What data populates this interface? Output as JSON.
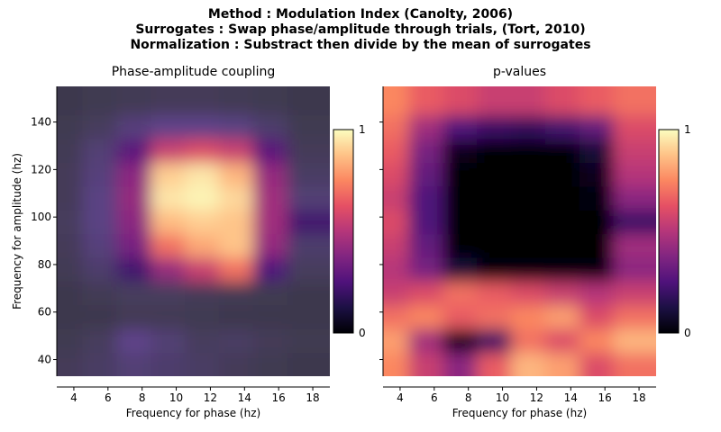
{
  "figure": {
    "title_lines": [
      "Method : Modulation Index (Canolty, 2006)",
      "Surrogates : Swap phase/amplitude through trials, (Tort, 2010)",
      "Normalization : Substract then divide by the mean of surrogates"
    ]
  },
  "colormap": {
    "name": "magma",
    "stops": [
      "#000004",
      "#1c1044",
      "#4f127b",
      "#812581",
      "#b5367a",
      "#e55064",
      "#fb8761",
      "#fec287",
      "#fcfdbf"
    ],
    "background_for_masked": "#3a3a3a"
  },
  "chart_data": [
    {
      "type": "heatmap",
      "title": "Phase-amplitude coupling",
      "xlabel": "Frequency for phase (hz)",
      "ylabel": "Frequency for amplitude (hz)",
      "xlim": [
        3,
        19
      ],
      "ylim": [
        33,
        155
      ],
      "xticks": [
        4,
        6,
        8,
        10,
        12,
        14,
        16,
        18
      ],
      "yticks": [
        40,
        60,
        80,
        100,
        120,
        140
      ],
      "colorbar": {
        "min": 0,
        "max": 1,
        "tick_labels": [
          "0",
          "1"
        ]
      },
      "x_bins": [
        3.5,
        5.5,
        7.5,
        9.5,
        11.5,
        13.5,
        15.5,
        17.5
      ],
      "y_bins": [
        38,
        48,
        58,
        68,
        78,
        88,
        98,
        108,
        118,
        128,
        138,
        148
      ],
      "values": [
        [
          0.05,
          0.08,
          0.12,
          0.1,
          0.08,
          0.05,
          0.03,
          0.02
        ],
        [
          0.03,
          0.06,
          0.18,
          0.12,
          0.06,
          0.08,
          0.05,
          0.03
        ],
        [
          0.02,
          0.02,
          0.04,
          0.04,
          0.03,
          0.02,
          0.02,
          0.02
        ],
        [
          0.02,
          0.04,
          0.06,
          0.06,
          0.05,
          0.04,
          0.03,
          0.02
        ],
        [
          0.04,
          0.1,
          0.22,
          0.42,
          0.55,
          0.7,
          0.25,
          0.06
        ],
        [
          0.05,
          0.14,
          0.35,
          0.7,
          0.82,
          0.88,
          0.42,
          0.1
        ],
        [
          0.06,
          0.16,
          0.4,
          0.86,
          0.9,
          0.88,
          0.45,
          0.22
        ],
        [
          0.05,
          0.16,
          0.42,
          0.95,
          0.98,
          0.92,
          0.45,
          0.12
        ],
        [
          0.05,
          0.14,
          0.4,
          0.9,
          0.95,
          0.85,
          0.42,
          0.08
        ],
        [
          0.04,
          0.12,
          0.28,
          0.55,
          0.6,
          0.55,
          0.28,
          0.05
        ],
        [
          0.03,
          0.06,
          0.14,
          0.18,
          0.18,
          0.16,
          0.1,
          0.03
        ],
        [
          0.02,
          0.03,
          0.04,
          0.05,
          0.05,
          0.04,
          0.03,
          0.02
        ]
      ]
    },
    {
      "type": "heatmap",
      "title": "p-values",
      "xlabel": "Frequency for phase (hz)",
      "ylabel": "",
      "xlim": [
        3,
        19
      ],
      "ylim": [
        33,
        155
      ],
      "xticks": [
        4,
        6,
        8,
        10,
        12,
        14,
        16,
        18
      ],
      "yticks": [
        40,
        60,
        80,
        100,
        120,
        140
      ],
      "colorbar": {
        "min": 0,
        "max": 1,
        "tick_labels": [
          "0",
          "1"
        ]
      },
      "x_bins": [
        3.5,
        5.5,
        7.5,
        9.5,
        11.5,
        13.5,
        15.5,
        17.5
      ],
      "y_bins": [
        38,
        48,
        58,
        68,
        78,
        88,
        98,
        108,
        118,
        128,
        138,
        148
      ],
      "values": [
        [
          0.75,
          0.55,
          0.4,
          0.65,
          0.85,
          0.8,
          0.6,
          0.7
        ],
        [
          0.8,
          0.45,
          0.05,
          0.2,
          0.7,
          0.6,
          0.75,
          0.85
        ],
        [
          0.7,
          0.75,
          0.65,
          0.7,
          0.75,
          0.8,
          0.6,
          0.7
        ],
        [
          0.55,
          0.6,
          0.7,
          0.65,
          0.6,
          0.55,
          0.5,
          0.55
        ],
        [
          0.5,
          0.35,
          0.1,
          0.02,
          0.01,
          0.01,
          0.02,
          0.4
        ],
        [
          0.55,
          0.3,
          0.0,
          0.0,
          0.0,
          0.0,
          0.0,
          0.45
        ],
        [
          0.6,
          0.25,
          0.0,
          0.0,
          0.0,
          0.0,
          0.0,
          0.2
        ],
        [
          0.55,
          0.25,
          0.0,
          0.0,
          0.0,
          0.0,
          0.02,
          0.4
        ],
        [
          0.6,
          0.3,
          0.0,
          0.0,
          0.0,
          0.0,
          0.05,
          0.5
        ],
        [
          0.65,
          0.35,
          0.05,
          0.0,
          0.0,
          0.0,
          0.1,
          0.55
        ],
        [
          0.7,
          0.45,
          0.25,
          0.2,
          0.18,
          0.22,
          0.3,
          0.6
        ],
        [
          0.75,
          0.65,
          0.6,
          0.55,
          0.55,
          0.6,
          0.65,
          0.7
        ]
      ]
    }
  ]
}
